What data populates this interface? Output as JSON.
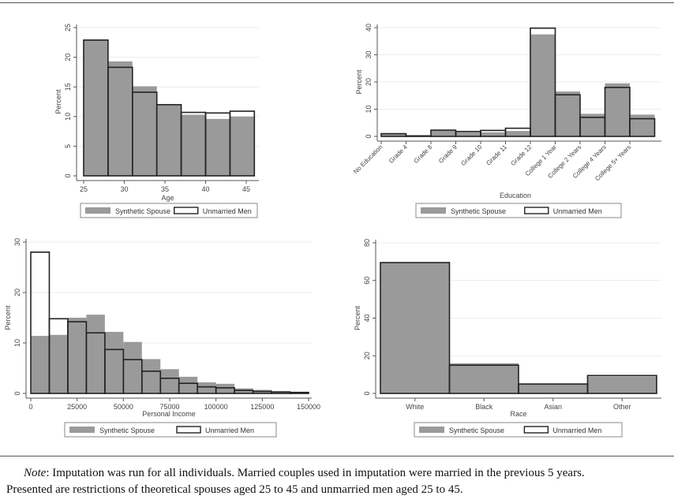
{
  "legend": {
    "synthetic": "Synthetic Spouse",
    "unmarried": "Unmarried Men"
  },
  "colors": {
    "synthetic_fill": "#9a9a9a",
    "unmarried_outline": "#222222",
    "grid": "#ececec"
  },
  "chart_data": [
    {
      "type": "bar",
      "mode": "histogram",
      "xlabel": "Age",
      "ylabel": "Percent",
      "ylim": [
        0,
        25
      ],
      "yticks": [
        "0",
        "5",
        "10",
        "15",
        "20",
        "25"
      ],
      "yticks_values": [
        0,
        5,
        10,
        15,
        20,
        25
      ],
      "xticks": [
        "25",
        "30",
        "35",
        "40",
        "45"
      ],
      "xticks_values": [
        25,
        30,
        35,
        40,
        45
      ],
      "bin_start": 25,
      "bin_width": 3,
      "grid": true,
      "legend": "bottom",
      "series": [
        {
          "name": "Synthetic Spouse",
          "values": [
            22.9,
            19.3,
            15.1,
            12.0,
            10.3,
            9.6,
            10.0
          ]
        },
        {
          "name": "Unmarried Men",
          "values": [
            22.9,
            18.3,
            14.1,
            12.0,
            10.7,
            10.6,
            10.9
          ]
        }
      ]
    },
    {
      "type": "bar",
      "mode": "categorical",
      "xlabel": "Education",
      "ylabel": "Percent",
      "ylim": [
        0,
        40
      ],
      "yticks": [
        "0",
        "10",
        "20",
        "30",
        "40"
      ],
      "yticks_values": [
        0,
        10,
        20,
        30,
        40
      ],
      "categories": [
        "No Education",
        "Grade 4",
        "Grade 8",
        "Grade 9",
        "Grade 10",
        "Grade 11",
        "Grade 12",
        "College 1 Year",
        "College 2 Years",
        "College 4 Years",
        "College 5+ Years"
      ],
      "grid": true,
      "legend": "bottom",
      "series": [
        {
          "name": "Synthetic Spouse",
          "values": [
            1.0,
            0.2,
            2.3,
            1.5,
            1.5,
            2.0,
            37.5,
            16.5,
            8.3,
            19.5,
            8.0
          ]
        },
        {
          "name": "Unmarried Men",
          "values": [
            1.0,
            0.2,
            2.3,
            1.8,
            2.2,
            3.0,
            39.8,
            15.3,
            7.0,
            18.0,
            6.5
          ]
        }
      ]
    },
    {
      "type": "bar",
      "mode": "histogram",
      "xlabel": "Personal Income",
      "ylabel": "Percent",
      "ylim": [
        0,
        30
      ],
      "yticks": [
        "0",
        "10",
        "20",
        "30"
      ],
      "yticks_values": [
        0,
        10,
        20,
        30
      ],
      "xticks": [
        "0",
        "25000",
        "50000",
        "75000",
        "100000",
        "125000",
        "150000"
      ],
      "xticks_values": [
        0,
        25000,
        50000,
        75000,
        100000,
        125000,
        150000
      ],
      "bin_start": 0,
      "bin_width": 10000,
      "grid": true,
      "legend": "bottom",
      "series": [
        {
          "name": "Synthetic Spouse",
          "values": [
            11.4,
            11.6,
            15.0,
            15.6,
            12.2,
            10.2,
            6.8,
            4.8,
            3.3,
            2.2,
            1.9,
            1.0,
            0.7,
            0.4,
            0.3
          ]
        },
        {
          "name": "Unmarried Men",
          "values": [
            28.0,
            14.8,
            14.2,
            12.0,
            8.7,
            6.7,
            4.4,
            3.0,
            2.0,
            1.3,
            1.1,
            0.6,
            0.4,
            0.3,
            0.2
          ]
        }
      ]
    },
    {
      "type": "bar",
      "mode": "categorical",
      "xlabel": "Race",
      "ylabel": "Percent",
      "ylim": [
        0,
        80
      ],
      "yticks": [
        "0",
        "20",
        "40",
        "60",
        "80"
      ],
      "yticks_values": [
        0,
        20,
        40,
        60,
        80
      ],
      "categories": [
        "White",
        "Black",
        "Asian",
        "Other"
      ],
      "grid": true,
      "legend": "bottom",
      "series": [
        {
          "name": "Synthetic Spouse",
          "values": [
            69.5,
            16.0,
            5.0,
            9.0
          ]
        },
        {
          "name": "Unmarried Men",
          "values": [
            69.5,
            15.0,
            5.0,
            9.5
          ]
        }
      ]
    }
  ],
  "note": {
    "label": "Note",
    "line1": ": Imputation was run for all individuals. Married couples used in imputation were married in the previous 5 years.",
    "line2": "Presented are restrictions of theoretical spouses aged 25 to 45 and unmarried men aged 25 to 45."
  }
}
